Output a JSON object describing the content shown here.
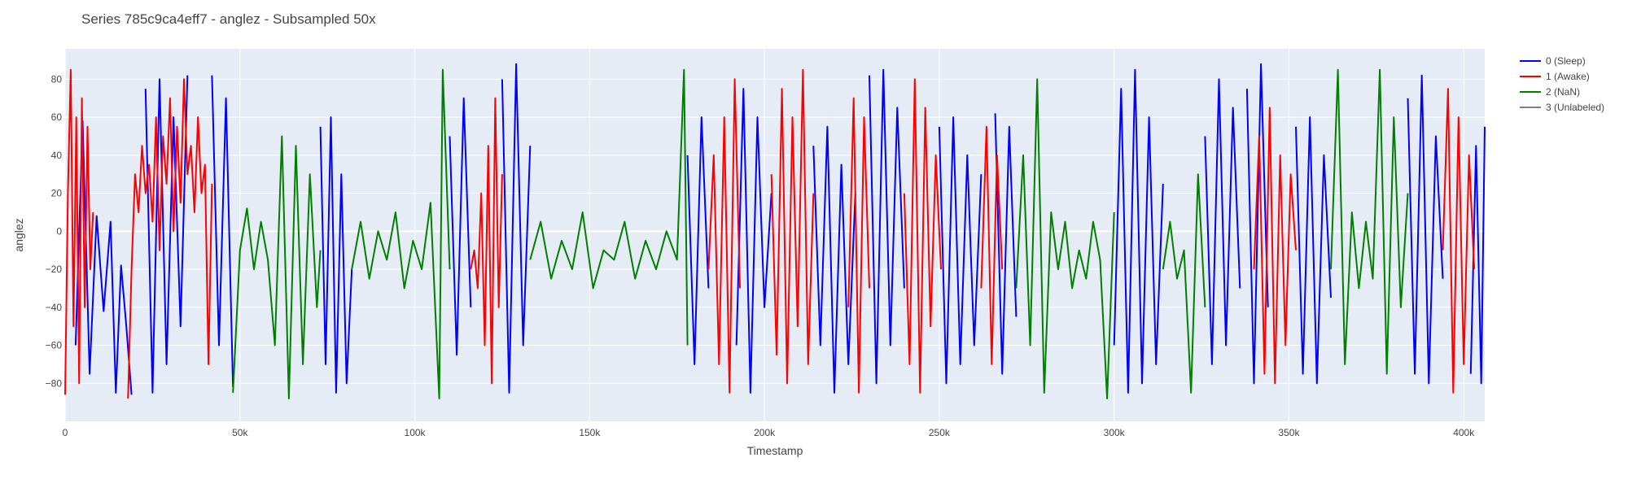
{
  "chart_data": {
    "type": "line",
    "title": "Series 785c9ca4eff7 - anglez - Subsampled 50x",
    "xlabel": "Timestamp",
    "ylabel": "anglez",
    "xlim": [
      0,
      406000
    ],
    "ylim": [
      -100,
      96
    ],
    "x_ticks": [
      0,
      50000,
      100000,
      150000,
      200000,
      250000,
      300000,
      350000,
      400000
    ],
    "x_tick_labels": [
      "0",
      "50k",
      "100k",
      "150k",
      "200k",
      "250k",
      "300k",
      "350k",
      "400k"
    ],
    "y_ticks": [
      -80,
      -60,
      -40,
      -20,
      0,
      20,
      40,
      60,
      80
    ],
    "y_tick_labels": [
      "−80",
      "−60",
      "−40",
      "−20",
      "0",
      "20",
      "40",
      "60",
      "80"
    ],
    "grid": true,
    "legend_position": "top-right",
    "plot_background": "#e5ecf6",
    "grid_color": "#ffffff",
    "series": [
      {
        "name": "0 (Sleep)",
        "color": "#0000ff",
        "segments": [
          {
            "x": [
              3000,
              5000,
              7000,
              9000,
              11000,
              13000,
              14500,
              16000,
              17500,
              19000
            ],
            "y": [
              -60,
              58,
              -75,
              8,
              -42,
              5,
              -85,
              -18,
              -50,
              -86
            ]
          },
          {
            "x": [
              23000,
              25000,
              27000,
              29000,
              31000,
              33000,
              35000
            ],
            "y": [
              75,
              -85,
              80,
              -70,
              60,
              -50,
              82
            ]
          },
          {
            "x": [
              42000,
              44000,
              46000,
              48000
            ],
            "y": [
              82,
              -60,
              70,
              -82
            ]
          },
          {
            "x": [
              73000,
              74500,
              76000,
              77500,
              79000,
              80500,
              82000
            ],
            "y": [
              55,
              -70,
              60,
              -85,
              30,
              -80,
              -20
            ]
          },
          {
            "x": [
              110000,
              112000,
              114000,
              116000
            ],
            "y": [
              50,
              -65,
              70,
              -40
            ]
          },
          {
            "x": [
              125000,
              127000,
              129000,
              131000,
              133000
            ],
            "y": [
              80,
              -85,
              88,
              -60,
              45
            ]
          },
          {
            "x": [
              178000,
              180000,
              182000,
              184000
            ],
            "y": [
              40,
              -70,
              60,
              -30
            ]
          },
          {
            "x": [
              192000,
              194000,
              196000,
              198000,
              200000,
              202000
            ],
            "y": [
              -60,
              75,
              -85,
              60,
              -40,
              20
            ]
          },
          {
            "x": [
              214000,
              216000,
              218000,
              220000,
              222000,
              224000,
              226000
            ],
            "y": [
              45,
              -60,
              55,
              -85,
              35,
              -70,
              20
            ]
          },
          {
            "x": [
              230000,
              232000,
              234000,
              236000,
              238000,
              240000
            ],
            "y": [
              82,
              -80,
              85,
              -60,
              65,
              -30
            ]
          },
          {
            "x": [
              250000,
              252000,
              254000,
              256000,
              258000,
              260000,
              262000
            ],
            "y": [
              55,
              -80,
              60,
              -70,
              40,
              -60,
              30
            ]
          },
          {
            "x": [
              266000,
              268000,
              270000,
              272000
            ],
            "y": [
              62,
              -75,
              55,
              -45
            ]
          },
          {
            "x": [
              300000,
              302000,
              304000,
              306000,
              308000,
              310000,
              312000,
              314000
            ],
            "y": [
              -60,
              75,
              -85,
              85,
              -80,
              60,
              -70,
              25
            ]
          },
          {
            "x": [
              326000,
              328000,
              330000,
              332000,
              334000,
              336000
            ],
            "y": [
              50,
              -70,
              80,
              -60,
              65,
              -30
            ]
          },
          {
            "x": [
              338000,
              340000,
              342000,
              344000
            ],
            "y": [
              75,
              -80,
              88,
              -40
            ]
          },
          {
            "x": [
              352000,
              354000,
              356000,
              358000,
              360000,
              362000
            ],
            "y": [
              55,
              -75,
              60,
              -80,
              40,
              -35
            ]
          },
          {
            "x": [
              384000,
              386000,
              388000,
              390000,
              392000,
              394000
            ],
            "y": [
              70,
              -75,
              82,
              -80,
              50,
              -25
            ]
          },
          {
            "x": [
              402000,
              403500,
              405000,
              406000
            ],
            "y": [
              -75,
              45,
              -80,
              55
            ]
          }
        ]
      },
      {
        "name": "1 (Awake)",
        "color": "#ff0000",
        "segments": [
          {
            "x": [
              0,
              800,
              1600,
              2400,
              3200,
              4000,
              4800,
              5600,
              6400,
              7200,
              8000
            ],
            "y": [
              -86,
              20,
              85,
              -50,
              60,
              -80,
              70,
              -40,
              55,
              -20,
              10
            ]
          },
          {
            "x": [
              18000,
              19000,
              20000,
              21000,
              22000,
              23000,
              24000,
              25000,
              26000,
              27000,
              28000,
              29000,
              30000,
              31000,
              32000,
              33000,
              34000,
              35000,
              36000,
              37000,
              38000,
              39000,
              40000,
              41000,
              42000
            ],
            "y": [
              -88,
              -20,
              30,
              10,
              45,
              20,
              35,
              5,
              60,
              -10,
              50,
              25,
              70,
              0,
              55,
              15,
              80,
              30,
              45,
              10,
              60,
              20,
              35,
              -70,
              25
            ]
          },
          {
            "x": [
              116000,
              117000,
              118000,
              119000,
              120000,
              121000,
              122000,
              123000,
              124000,
              125000
            ],
            "y": [
              -20,
              -10,
              -30,
              20,
              -60,
              45,
              -80,
              70,
              -40,
              30
            ]
          },
          {
            "x": [
              184000,
              185500,
              187000,
              188500,
              190000,
              191500,
              193000
            ],
            "y": [
              -20,
              40,
              -70,
              60,
              -85,
              80,
              -30
            ]
          },
          {
            "x": [
              202000,
              203500,
              205000,
              206500,
              208000,
              209500,
              211000,
              212500,
              214000
            ],
            "y": [
              30,
              -65,
              75,
              -80,
              60,
              -50,
              85,
              -70,
              20
            ]
          },
          {
            "x": [
              224000,
              225500,
              227000,
              228500,
              230000
            ],
            "y": [
              -40,
              70,
              -85,
              60,
              -30
            ]
          },
          {
            "x": [
              240000,
              241500,
              243000,
              244500,
              246000,
              247500,
              249000,
              250500
            ],
            "y": [
              20,
              -70,
              80,
              -85,
              65,
              -50,
              40,
              -20
            ]
          },
          {
            "x": [
              262000,
              263500,
              265000,
              266500,
              268000
            ],
            "y": [
              -30,
              55,
              -70,
              40,
              -20
            ]
          },
          {
            "x": [
              340000,
              341500,
              343000,
              344500,
              346000,
              347500,
              349000,
              350500,
              352000
            ],
            "y": [
              -20,
              50,
              -75,
              65,
              -80,
              40,
              -60,
              30,
              -10
            ]
          },
          {
            "x": [
              394000,
              395500,
              397000,
              398500,
              400000,
              401500,
              403000
            ],
            "y": [
              -10,
              75,
              -85,
              60,
              -70,
              40,
              -20
            ]
          }
        ]
      },
      {
        "name": "2 (NaN)",
        "color": "#008000",
        "segments": [
          {
            "x": [
              48000,
              50000,
              52000,
              54000,
              56000,
              58000,
              60000,
              62000,
              64000,
              66000,
              68000,
              70000,
              72000,
              73000
            ],
            "y": [
              -85,
              -10,
              12,
              -20,
              5,
              -15,
              -60,
              50,
              -88,
              45,
              -70,
              30,
              -40,
              -10
            ]
          },
          {
            "x": [
              82000,
              84500,
              87000,
              89500,
              92000,
              94500,
              97000,
              99500,
              102000,
              104500,
              107000,
              108000,
              110000
            ],
            "y": [
              -20,
              5,
              -25,
              0,
              -15,
              10,
              -30,
              -5,
              -20,
              15,
              -88,
              85,
              -20
            ]
          },
          {
            "x": [
              133000,
              136000,
              139000,
              142000,
              145000,
              148000,
              151000,
              154000,
              157000,
              160000,
              163000,
              166000,
              169000,
              172000,
              175000,
              177000,
              178000
            ],
            "y": [
              -15,
              5,
              -25,
              -5,
              -20,
              10,
              -30,
              -10,
              -15,
              5,
              -25,
              -5,
              -20,
              0,
              -15,
              85,
              -60
            ]
          },
          {
            "x": [
              272000,
              274000,
              276000,
              278000,
              280000,
              282000,
              284000,
              286000,
              288000,
              290000,
              292000,
              294000,
              296000,
              298000,
              300000
            ],
            "y": [
              -30,
              40,
              -60,
              80,
              -85,
              10,
              -20,
              5,
              -30,
              -10,
              -25,
              5,
              -15,
              -88,
              10
            ]
          },
          {
            "x": [
              314000,
              316000,
              318000,
              320000,
              322000,
              324000,
              326000
            ],
            "y": [
              -20,
              5,
              -25,
              -10,
              -85,
              30,
              -40
            ]
          },
          {
            "x": [
              362000,
              364000,
              366000,
              368000,
              370000,
              372000,
              374000,
              376000,
              378000,
              380000,
              382000,
              384000
            ],
            "y": [
              -20,
              85,
              -70,
              10,
              -30,
              5,
              -25,
              85,
              -75,
              60,
              -40,
              20
            ]
          }
        ]
      },
      {
        "name": "3 (Unlabeled)",
        "color": "#808080",
        "segments": []
      }
    ]
  }
}
